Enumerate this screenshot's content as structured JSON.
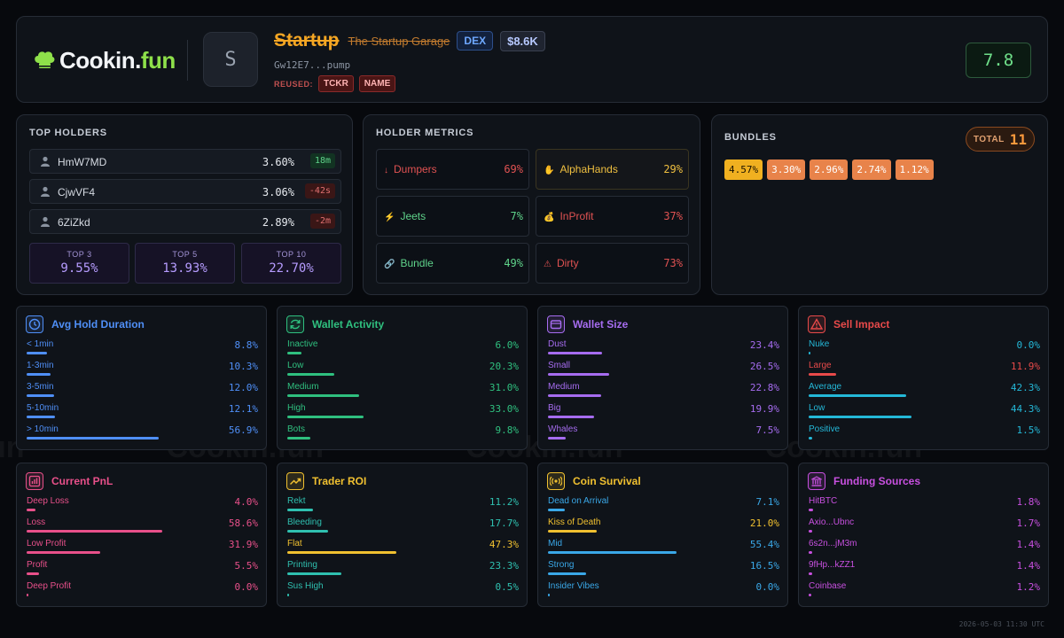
{
  "header": {
    "logo_text": "Cookin.fun",
    "logo_main": "Cookin",
    "logo_dot": ".",
    "logo_fun": "fun",
    "avatar_letter": "S",
    "token_symbol": "Startup",
    "token_name": "The Startup Garage",
    "dex_badge": "DEX",
    "market_cap": "$8.6K",
    "address": "Gw12E7...pump",
    "reused_label": "REUSED:",
    "reused_tags": [
      "TCKR",
      "NAME"
    ],
    "score": "7.8"
  },
  "top_holders": {
    "title": "TOP HOLDERS",
    "holders": [
      {
        "address": "HmW7MD",
        "percent": "3.60%",
        "age": "18m",
        "age_trend": "positive"
      },
      {
        "address": "CjwVF4",
        "percent": "3.06%",
        "age": "-42s",
        "age_trend": "negative"
      },
      {
        "address": "6ZiZkd",
        "percent": "2.89%",
        "age": "-2m",
        "age_trend": "negative"
      }
    ],
    "totals": [
      {
        "label": "TOP 3",
        "value": "9.55%"
      },
      {
        "label": "TOP 5",
        "value": "13.93%"
      },
      {
        "label": "TOP 10",
        "value": "22.70%"
      }
    ]
  },
  "holder_metrics": {
    "title": "HOLDER METRICS",
    "items": [
      {
        "icon": "↓",
        "icon_name": "down-arrow-icon",
        "name": "Dumpers",
        "value": "69%",
        "color": "#e05252",
        "name_color": "#e05252",
        "highlight": false
      },
      {
        "icon": "✋",
        "icon_name": "hand-icon",
        "name": "AlphaHands",
        "value": "29%",
        "color": "#f0c040",
        "name_color": "#f0c040",
        "highlight": true
      },
      {
        "icon": "⚡",
        "icon_name": "lightning-icon",
        "name": "Jeets",
        "value": "7%",
        "color": "#5fd38a",
        "name_color": "#5fd38a",
        "highlight": false
      },
      {
        "icon": "💰",
        "icon_name": "money-bag-icon",
        "name": "InProfit",
        "value": "37%",
        "color": "#e05252",
        "name_color": "#e05252",
        "highlight": false
      },
      {
        "icon": "🔗",
        "icon_name": "link-icon",
        "name": "Bundle",
        "value": "49%",
        "color": "#5fd38a",
        "name_color": "#5fd38a",
        "highlight": false
      },
      {
        "icon": "⚠",
        "icon_name": "warning-icon",
        "name": "Dirty",
        "value": "73%",
        "color": "#e05252",
        "name_color": "#e05252",
        "highlight": false
      }
    ]
  },
  "bundles": {
    "title": "BUNDLES",
    "total_label": "TOTAL",
    "total_value": "11",
    "items": [
      {
        "value": "4.57%",
        "color": "#f0b020",
        "text": "#1a1200"
      },
      {
        "value": "3.30%",
        "color": "#e8834a",
        "text": "#ffffff"
      },
      {
        "value": "2.96%",
        "color": "#e8834a",
        "text": "#ffffff"
      },
      {
        "value": "2.74%",
        "color": "#e8834a",
        "text": "#ffffff"
      },
      {
        "value": "1.12%",
        "color": "#e8834a",
        "text": "#ffffff"
      }
    ]
  },
  "cards": [
    {
      "title": "Avg Hold Duration",
      "icon_name": "clock-icon",
      "color": "#4f8ff7",
      "rows": [
        {
          "label": "< 1min",
          "value": "8.8%",
          "fraction": 0.088
        },
        {
          "label": "1-3min",
          "value": "10.3%",
          "fraction": 0.103
        },
        {
          "label": "3-5min",
          "value": "12.0%",
          "fraction": 0.12
        },
        {
          "label": "5-10min",
          "value": "12.1%",
          "fraction": 0.121
        },
        {
          "label": "> 10min",
          "value": "56.9%",
          "fraction": 0.569
        }
      ]
    },
    {
      "title": "Wallet Activity",
      "icon_name": "refresh-icon",
      "color": "#2fc07f",
      "rows": [
        {
          "label": "Inactive",
          "value": "6.0%",
          "fraction": 0.06
        },
        {
          "label": "Low",
          "value": "20.3%",
          "fraction": 0.203
        },
        {
          "label": "Medium",
          "value": "31.0%",
          "fraction": 0.31
        },
        {
          "label": "High",
          "value": "33.0%",
          "fraction": 0.33
        },
        {
          "label": "Bots",
          "value": "9.8%",
          "fraction": 0.098
        }
      ]
    },
    {
      "title": "Wallet Size",
      "icon_name": "wallet-icon",
      "color": "#a66cf0",
      "rows": [
        {
          "label": "Dust",
          "value": "23.4%",
          "fraction": 0.234
        },
        {
          "label": "Small",
          "value": "26.5%",
          "fraction": 0.265
        },
        {
          "label": "Medium",
          "value": "22.8%",
          "fraction": 0.228
        },
        {
          "label": "Big",
          "value": "19.9%",
          "fraction": 0.199
        },
        {
          "label": "Whales",
          "value": "7.5%",
          "fraction": 0.075
        }
      ]
    },
    {
      "title": "Sell Impact",
      "icon_name": "warning-triangle-icon",
      "color": "#e84a4a",
      "rows": [
        {
          "label": "Nuke",
          "value": "0.0%",
          "fraction": 0,
          "color": "#24b8d8"
        },
        {
          "label": "Large",
          "value": "11.9%",
          "fraction": 0.119,
          "color": "#e84a4a"
        },
        {
          "label": "Average",
          "value": "42.3%",
          "fraction": 0.423,
          "color": "#24b8d8"
        },
        {
          "label": "Low",
          "value": "44.3%",
          "fraction": 0.443,
          "color": "#24b8d8"
        },
        {
          "label": "Positive",
          "value": "1.5%",
          "fraction": 0.015,
          "color": "#24b8d8"
        }
      ]
    },
    {
      "title": "Current PnL",
      "icon_name": "bar-chart-icon",
      "color": "#e8508a",
      "rows": [
        {
          "label": "Deep Loss",
          "value": "4.0%",
          "fraction": 0.04
        },
        {
          "label": "Loss",
          "value": "58.6%",
          "fraction": 0.586
        },
        {
          "label": "Low Profit",
          "value": "31.9%",
          "fraction": 0.319
        },
        {
          "label": "Profit",
          "value": "5.5%",
          "fraction": 0.055
        },
        {
          "label": "Deep Profit",
          "value": "0.0%",
          "fraction": 0
        }
      ]
    },
    {
      "title": "Trader ROI",
      "icon_name": "trending-up-icon",
      "color": "#f0c030",
      "rows": [
        {
          "label": "Rekt",
          "value": "11.2%",
          "fraction": 0.112,
          "color": "#2fc0b0"
        },
        {
          "label": "Bleeding",
          "value": "17.7%",
          "fraction": 0.177,
          "color": "#2fc0b0"
        },
        {
          "label": "Flat",
          "value": "47.3%",
          "fraction": 0.473,
          "color": "#f0c030"
        },
        {
          "label": "Printing",
          "value": "23.3%",
          "fraction": 0.233,
          "color": "#2fc0b0"
        },
        {
          "label": "Sus High",
          "value": "0.5%",
          "fraction": 0.005,
          "color": "#2fc0b0"
        }
      ]
    },
    {
      "title": "Coin Survival",
      "icon_name": "radar-icon",
      "color": "#f0c030",
      "rows": [
        {
          "label": "Dead on Arrival",
          "value": "7.1%",
          "fraction": 0.071,
          "color": "#3aa8e8"
        },
        {
          "label": "Kiss of Death",
          "value": "21.0%",
          "fraction": 0.21,
          "color": "#f0c030"
        },
        {
          "label": "Mid",
          "value": "55.4%",
          "fraction": 0.554,
          "color": "#3aa8e8"
        },
        {
          "label": "Strong",
          "value": "16.5%",
          "fraction": 0.165,
          "color": "#3aa8e8"
        },
        {
          "label": "Insider Vibes",
          "value": "0.0%",
          "fraction": 0,
          "color": "#3aa8e8"
        }
      ]
    },
    {
      "title": "Funding Sources",
      "icon_name": "bank-icon",
      "color": "#c850e0",
      "rows": [
        {
          "label": "HitBTC",
          "value": "1.8%",
          "fraction": 0.018
        },
        {
          "label": "Axio...Ubnc",
          "value": "1.7%",
          "fraction": 0.017
        },
        {
          "label": "6s2n...jM3m",
          "value": "1.4%",
          "fraction": 0.014
        },
        {
          "label": "9fHp...kZZ1",
          "value": "1.4%",
          "fraction": 0.014
        },
        {
          "label": "Coinbase",
          "value": "1.2%",
          "fraction": 0.012
        }
      ]
    }
  ],
  "watermark_text": "Cookin.fun",
  "timestamp": "2026-05-03 11:30 UTC"
}
